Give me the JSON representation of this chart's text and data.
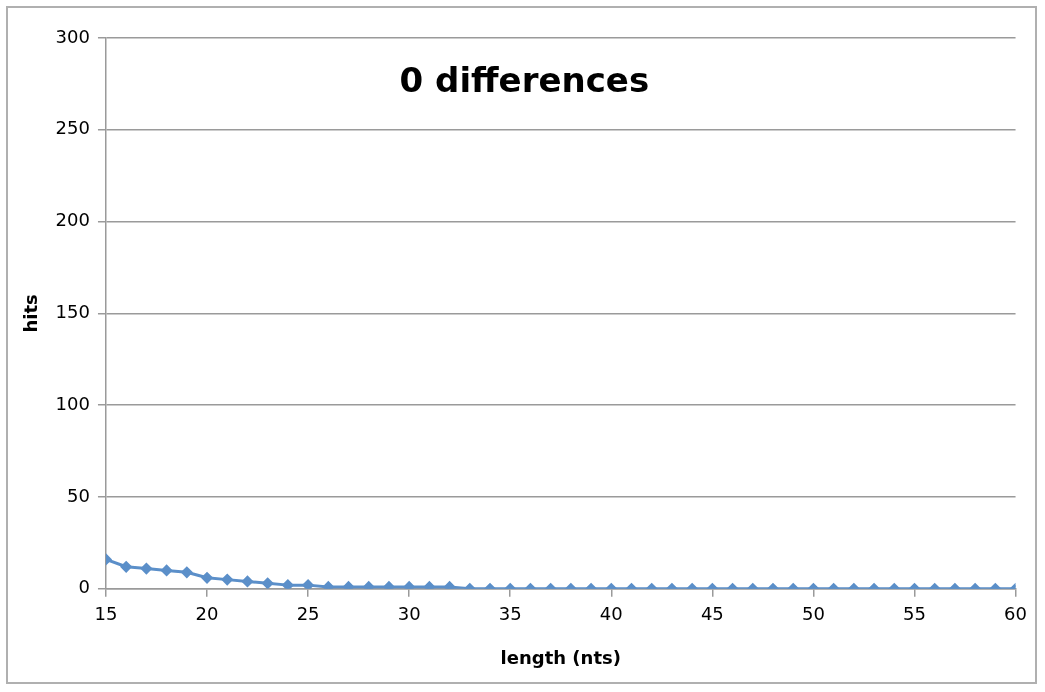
{
  "chart_data": {
    "type": "line",
    "title": "0 differences",
    "xlabel": "length (nts)",
    "ylabel": "hits",
    "x": [
      15,
      16,
      17,
      18,
      19,
      20,
      21,
      22,
      23,
      24,
      25,
      26,
      27,
      28,
      29,
      30,
      31,
      32,
      33,
      34,
      35,
      36,
      37,
      38,
      39,
      40,
      41,
      42,
      43,
      44,
      45,
      46,
      47,
      48,
      49,
      50,
      51,
      52,
      53,
      54,
      55,
      56,
      57,
      58,
      59,
      60
    ],
    "series": [
      {
        "color": "#5b8fc9",
        "values": [
          16,
          12,
          11,
          10,
          9,
          6,
          5,
          4,
          3,
          2,
          2,
          1,
          1,
          1,
          1,
          1,
          1,
          1,
          0,
          0,
          0,
          0,
          0,
          0,
          0,
          0,
          0,
          0,
          0,
          0,
          0,
          0,
          0,
          0,
          0,
          0,
          0,
          0,
          0,
          0,
          0,
          0,
          0,
          0,
          0,
          0
        ]
      }
    ],
    "xlim": [
      15,
      60
    ],
    "xticks": [
      15,
      20,
      25,
      30,
      35,
      40,
      45,
      50,
      55,
      60
    ],
    "ylim": [
      0,
      300
    ],
    "yticks": [
      0,
      50,
      100,
      150,
      200,
      250,
      300
    ],
    "grid": "y",
    "legend": false,
    "marker": "diamond",
    "line_style": "solid"
  }
}
